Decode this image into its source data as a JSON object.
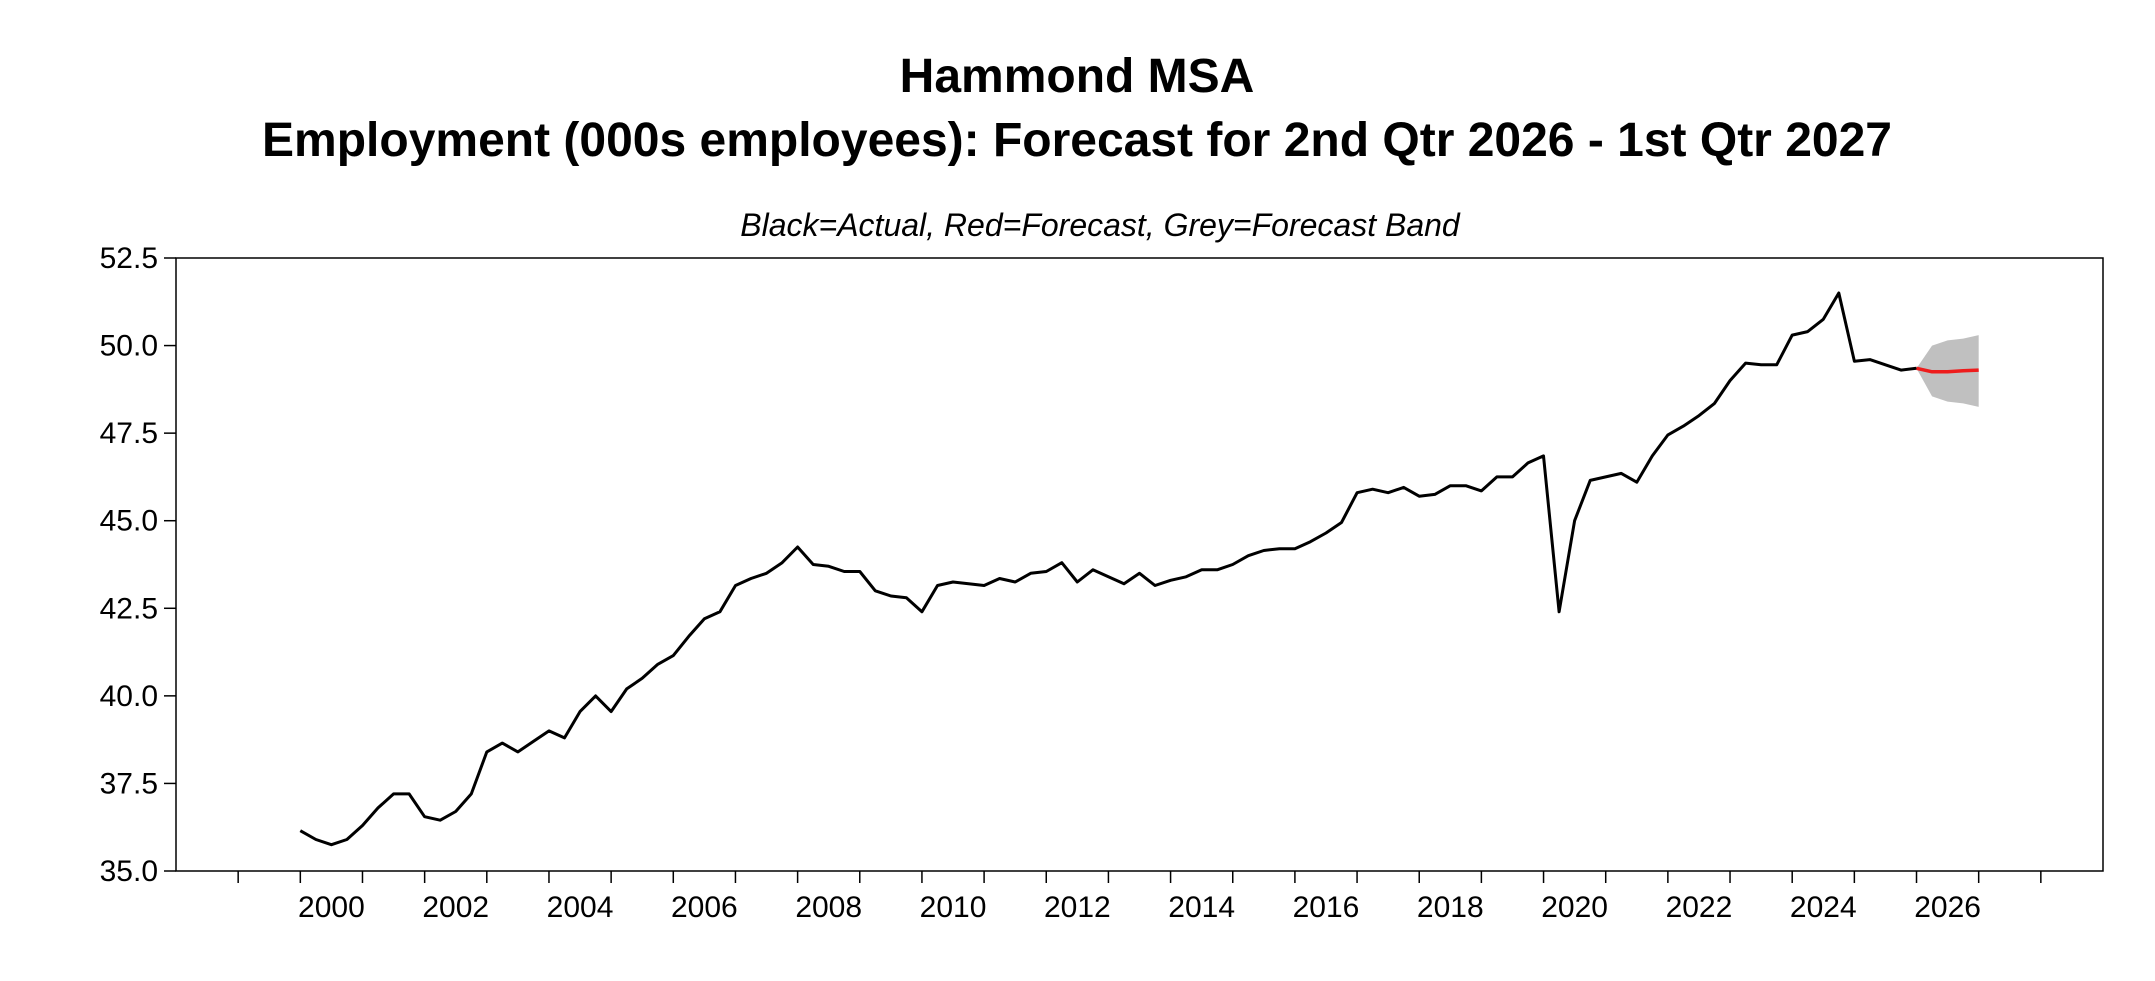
{
  "chart_data": {
    "type": "line",
    "title_lines": [
      "Hammond MSA",
      "Employment (000s employees): Forecast for 2nd Qtr 2026 - 1st Qtr 2027"
    ],
    "subtitle": "Black=Actual, Red=Forecast, Grey=Forecast Band",
    "xlabel": "",
    "ylabel": "",
    "xlim": [
      1998,
      2029
    ],
    "ylim": [
      35.0,
      52.5
    ],
    "y_ticks": [
      "35.0",
      "37.5",
      "40.0",
      "42.5",
      "45.0",
      "47.5",
      "50.0",
      "52.5"
    ],
    "x_ticks": [
      "2000",
      "2002",
      "2004",
      "2006",
      "2008",
      "2010",
      "2012",
      "2014",
      "2016",
      "2018",
      "2020",
      "2022",
      "2024",
      "2026"
    ],
    "grid": false,
    "colors": {
      "actual": "#000000",
      "forecast": "#ee1c1c",
      "band": "#c0c0c0"
    },
    "series": [
      {
        "start_quarter": "2000Q1",
        "values": [
          36.15,
          35.9,
          35.75,
          35.9,
          36.3,
          36.8,
          37.2,
          37.2,
          36.55,
          36.45,
          36.7,
          37.2,
          38.4,
          38.65,
          38.4,
          38.7,
          39.0,
          38.8,
          39.55,
          40.0,
          39.55,
          40.2,
          40.5,
          40.9,
          41.15,
          41.7,
          42.2,
          42.4,
          43.15,
          43.35,
          43.5,
          43.8,
          44.25,
          43.75,
          43.7,
          43.55,
          43.55,
          43.0,
          42.85,
          42.8,
          42.4,
          43.15,
          43.25,
          43.2,
          43.15,
          43.35,
          43.25,
          43.5,
          43.55,
          43.8,
          43.25,
          43.6,
          43.4,
          43.2,
          43.5,
          43.15,
          43.3,
          43.4,
          43.6,
          43.6,
          43.75,
          44.0,
          44.15,
          44.2,
          44.2,
          44.4,
          44.65,
          44.95,
          45.8,
          45.9,
          45.8,
          45.95,
          45.7,
          45.75,
          46.0,
          46.0,
          45.85,
          46.25,
          46.25,
          46.65,
          46.85,
          42.4,
          45.0,
          46.15,
          46.25,
          46.35,
          46.1,
          46.85,
          47.45,
          47.7,
          48.0,
          48.35,
          49.0,
          49.5,
          49.45,
          49.45,
          50.3,
          50.4,
          50.75,
          51.5,
          49.55,
          49.6,
          49.45,
          49.3,
          49.35
        ]
      },
      {
        "start_quarter": "2026Q1",
        "values": [
          49.35,
          49.25,
          49.25,
          49.28,
          49.3
        ]
      }
    ],
    "band": {
      "start_quarter": "2026Q1",
      "lower": [
        49.35,
        48.55,
        48.4,
        48.35,
        48.25
      ],
      "upper": [
        49.35,
        50.0,
        50.15,
        50.2,
        50.3
      ]
    }
  }
}
